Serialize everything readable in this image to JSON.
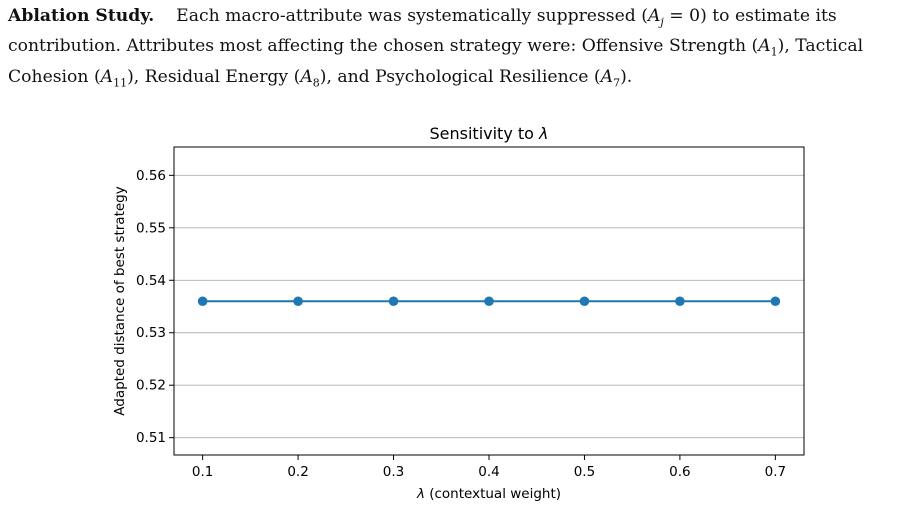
{
  "paragraph": {
    "lead": "Ablation Study.",
    "text_1": "Each macro-attribute was systematically suppressed (",
    "text_2": ") to estimate its contribution. Attributes most affecting the chosen strategy were: Offensive Strength (",
    "text_3": "), Tactical Cohesion (",
    "text_4": "), Residual Energy (",
    "text_5": "), and Psychological Resilience (",
    "text_6": ").",
    "math": {
      "suppression": "A",
      "suppression_sub": "j",
      "suppression_value": " = 0",
      "attr_1": "A",
      "attr_1_sub": "1",
      "attr_2": "A",
      "attr_2_sub": "11",
      "attr_3": "A",
      "attr_3_sub": "8",
      "attr_4": "A",
      "attr_4_sub": "7"
    }
  },
  "chart_data": {
    "type": "line",
    "title_prefix": "Sensitivity to ",
    "title_symbol": "λ",
    "xlabel_symbol": "λ",
    "xlabel_text": " (contextual weight)",
    "ylabel": "Adapted distance of best strategy",
    "x": [
      0.1,
      0.2,
      0.3,
      0.4,
      0.5,
      0.6,
      0.7
    ],
    "y": [
      0.536,
      0.536,
      0.536,
      0.536,
      0.536,
      0.536,
      0.536
    ],
    "xticks": [
      "0.1",
      "0.2",
      "0.3",
      "0.4",
      "0.5",
      "0.6",
      "0.7"
    ],
    "yticks": [
      "0.51",
      "0.52",
      "0.53",
      "0.54",
      "0.55",
      "0.56"
    ],
    "ytick_values": [
      0.51,
      0.52,
      0.53,
      0.54,
      0.55,
      0.56
    ],
    "xlim": [
      0.07,
      0.73
    ],
    "ylim": [
      0.5067,
      0.5654
    ],
    "grid": "horizontal",
    "line_color": "#1f77b4",
    "marker": "circle"
  }
}
